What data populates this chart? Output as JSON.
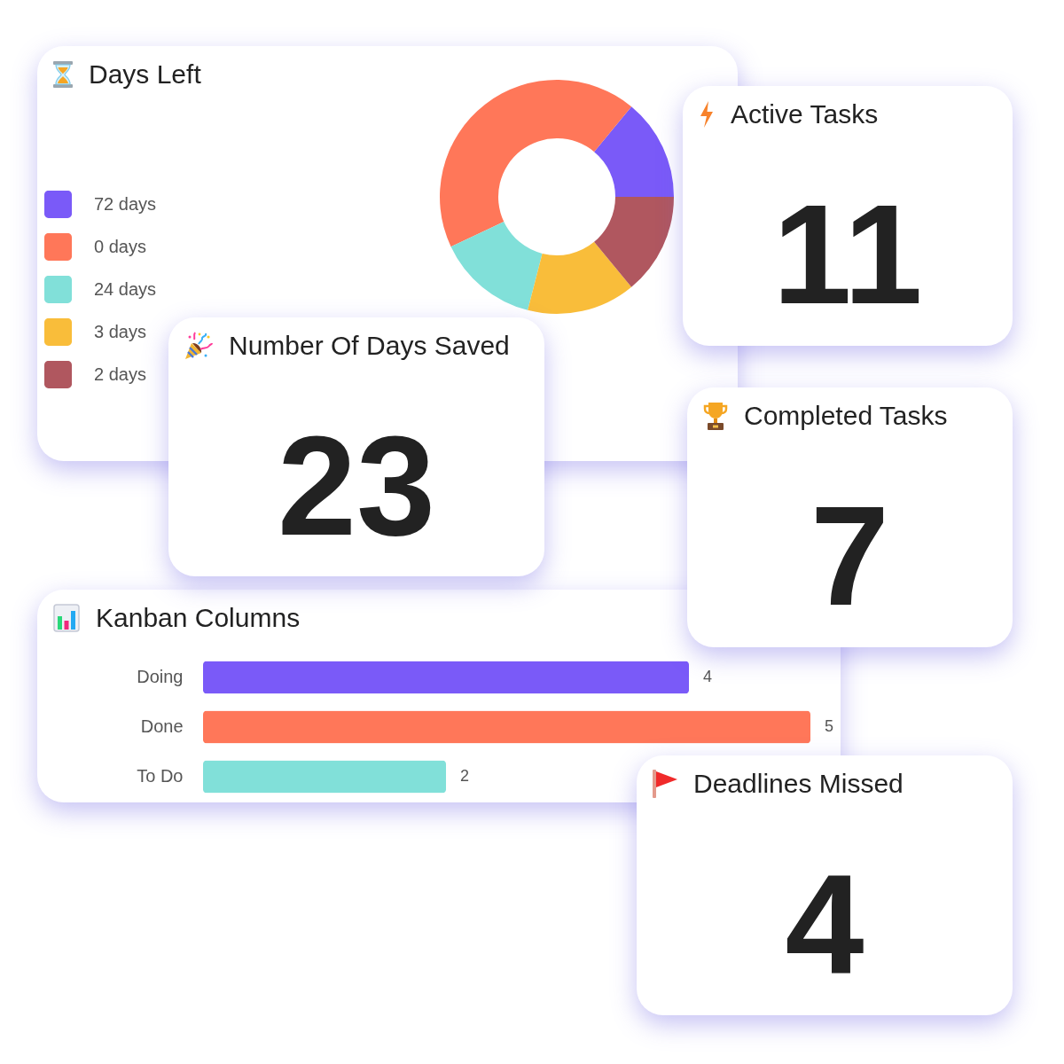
{
  "chart_data": [
    {
      "type": "donut",
      "title": "Days Left",
      "categories": [
        "72 days",
        "0 days",
        "24 days",
        "3 days",
        "2 days"
      ],
      "values": [
        14,
        43,
        14,
        15,
        14
      ],
      "colors": [
        "#7a5af8",
        "#ff7759",
        "#81e0d9",
        "#f9bd3a",
        "#b0575f"
      ],
      "legend": "left"
    },
    {
      "type": "other",
      "title": "Active Tasks",
      "annotations": [
        "11"
      ]
    },
    {
      "type": "other",
      "title": "Number Of Days Saved",
      "annotations": [
        "23"
      ]
    },
    {
      "type": "other",
      "title": "Completed Tasks",
      "annotations": [
        "7"
      ]
    },
    {
      "type": "bar",
      "title": "Kanban Columns",
      "orientation": "horizontal",
      "categories": [
        "Doing",
        "Done",
        "To Do"
      ],
      "values": [
        4,
        5,
        2
      ],
      "colors": [
        "#7a5af8",
        "#ff7759",
        "#81e0d9"
      ],
      "data_labels": true
    },
    {
      "type": "other",
      "title": "Deadlines Missed",
      "annotations": [
        "4"
      ]
    }
  ]
}
